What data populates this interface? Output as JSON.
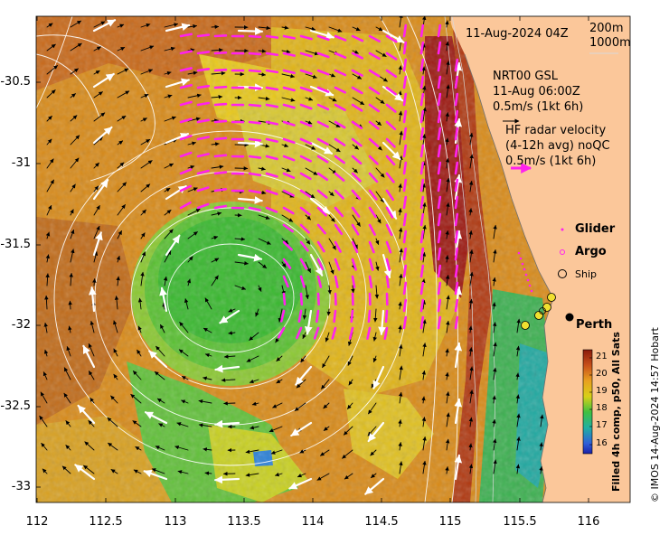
{
  "header": {
    "date": "11-Aug-2024 04Z"
  },
  "depth_contours": [
    "200m",
    "1000m"
  ],
  "nrt": {
    "title": "NRT00 GSL",
    "time": "11-Aug 06:00Z",
    "scale": "0.5m/s (1kt 6h)"
  },
  "radar": {
    "title": "HF radar velocity",
    "avg": "(4-12h avg) noQC",
    "scale": "0.5m/s (1kt 6h)"
  },
  "legend": {
    "glider": "Glider",
    "argo": "Argo",
    "ship": "Ship"
  },
  "place": "Perth",
  "colorbar": {
    "title": "Filled 4h comp, p50, All Sats",
    "ticks": [
      "21",
      "20",
      "19",
      "18",
      "17",
      "16"
    ]
  },
  "credit": "© IMOS 14-Aug-2024 14:57 Hobart",
  "axes": {
    "x_ticks": [
      "112",
      "112.5",
      "113",
      "113.5",
      "114",
      "114.5",
      "115",
      "115.5",
      "116"
    ],
    "y_ticks": [
      "-30.5",
      "-31",
      "-31.5",
      "-32",
      "-32.5",
      "-33"
    ]
  },
  "colors": {
    "land": "#fbc79a",
    "radar_arrow": "#ff22ee",
    "gsl_arrow": "#ffffff",
    "current_arrow": "#000000"
  }
}
